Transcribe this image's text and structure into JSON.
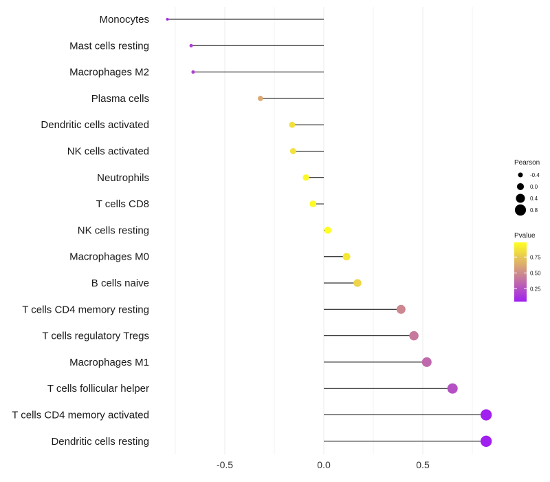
{
  "chart_data": {
    "type": "lollipop",
    "categories": [
      "Monocytes",
      "Mast cells resting",
      "Macrophages M2",
      "Plasma cells",
      "Dendritic cells activated",
      "NK cells activated",
      "Neutrophils",
      "T cells CD8",
      "NK cells resting",
      "Macrophages M0",
      "B cells naive",
      "T cells CD4 memory resting",
      "T cells regulatory  Tregs ",
      "Macrophages M1",
      "T cells follicular helper",
      "T cells CD4 memory activated",
      "Dendritic cells resting"
    ],
    "pearson": [
      -0.79,
      -0.67,
      -0.66,
      -0.32,
      -0.16,
      -0.155,
      -0.09,
      -0.055,
      0.02,
      0.115,
      0.17,
      0.39,
      0.455,
      0.52,
      0.65,
      0.82,
      0.82
    ],
    "pvalue": [
      0.1,
      0.18,
      0.2,
      0.62,
      0.85,
      0.86,
      0.95,
      0.96,
      0.98,
      0.88,
      0.8,
      0.48,
      0.42,
      0.35,
      0.25,
      0.05,
      0.05
    ],
    "xlim": [
      -0.9,
      0.95
    ],
    "xticks": [
      -0.5,
      0.0,
      0.5
    ],
    "xtick_labels": [
      "-0.5",
      "0.0",
      "0.5"
    ],
    "legend": {
      "size_title": "Pearson",
      "size_values": [
        -0.4,
        0.0,
        0.4,
        0.8
      ],
      "size_labels": [
        "-0.4",
        "0.0",
        "0.4",
        "0.8"
      ],
      "color_title": "Pvalue",
      "color_ticks": [
        0.75,
        0.5,
        0.25
      ],
      "color_tick_labels": [
        "0.75",
        "0.50",
        "0.25"
      ],
      "color_low": "#a020f0",
      "color_high": "#ffff20"
    },
    "title": "",
    "xlabel": "",
    "ylabel": ""
  }
}
